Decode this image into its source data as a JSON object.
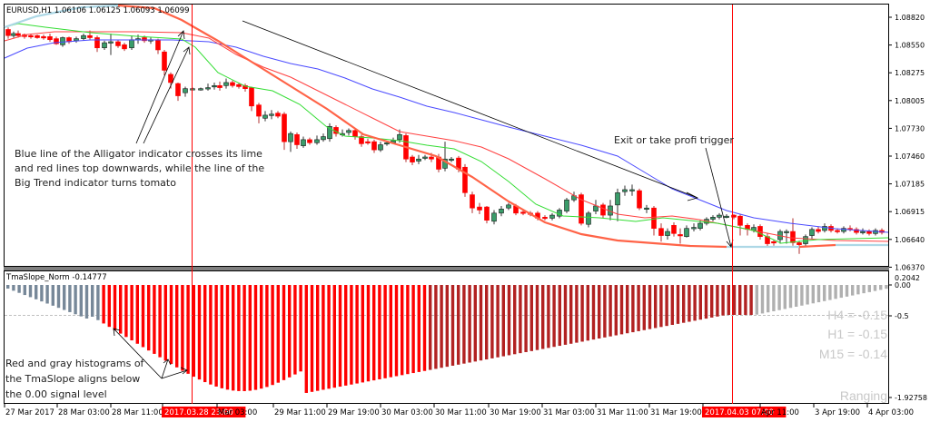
{
  "header": {
    "symbol_label": "EURUSD,H1  1.06106 1.06125 1.06093 1.06099"
  },
  "colors": {
    "bull": "#3a9c6a",
    "bear": "#ff0000",
    "alligator_jaw": "#4a4aff",
    "alligator_teeth": "#ff4040",
    "alligator_lips": "#33dd33",
    "big_trend_down": "#ff6347",
    "big_trend_up": "#add8e6",
    "hist_red": "#ff0000",
    "hist_darkred": "#b22222",
    "hist_gray": "#778899",
    "hist_lightgray": "#b0b0b0",
    "vline": "#ff0000",
    "trendline": "#000000"
  },
  "price_axis": {
    "ticks": [
      "1.08820",
      "1.08550",
      "1.08275",
      "1.08005",
      "1.07730",
      "1.07460",
      "1.07185",
      "1.06915",
      "1.06640",
      "1.06370"
    ]
  },
  "indicator": {
    "label": "TmaSlope_Norm -0.14777",
    "axis_ticks": [
      "0.2042",
      "0.00",
      "-0.5",
      "-1.92758"
    ],
    "tf_values": [
      "H4 = -0.15",
      "H1 = -0.15",
      "M15 = -0.14"
    ],
    "state": "Ranging"
  },
  "time_axis": {
    "labels": [
      "27 Mar 2017",
      "28 Mar 03:00",
      "28 Mar 11:00",
      "2017.03.28 23:00",
      "Mar 03:00",
      "29 Mar 11:00",
      "29 Mar 19:00",
      "30 Mar 03:00",
      "30 Mar 11:00",
      "30 Mar 19:00",
      "31 Mar 03:00",
      "31 Mar 11:00",
      "31 Mar 19:00",
      "2017.04.03 07:00",
      "Apr 11:00",
      "3 Apr 19:00",
      "4 Apr 03:00"
    ],
    "highlighted": [
      "2017.03.28 23:00",
      "2017.04.03 07:00"
    ]
  },
  "annotations": {
    "entry_note_1": "Blue line of the Alligator indicator crosses its lime",
    "entry_note_2": "and red lines top downwards, while the line of the",
    "entry_note_3": "Big Trend indicator turns tomato",
    "exit_note": "Exit or take profi trigger",
    "hist_note_1": "Red and gray histograms of",
    "hist_note_2": "the TmaSlope aligns below",
    "hist_note_3": "the 0.00 signal level"
  },
  "chart_data": {
    "type": "candlestick",
    "title": "EURUSD,H1",
    "ohlc_header": {
      "open": 1.06106,
      "high": 1.06125,
      "low": 1.06093,
      "close": 1.06099
    },
    "ylim": [
      1.0637,
      1.0895
    ],
    "y_ticks": [
      1.0882,
      1.0855,
      1.08275,
      1.08005,
      1.0773,
      1.0746,
      1.07185,
      1.06915,
      1.0664,
      1.0637
    ],
    "x_labels": [
      "27 Mar 2017",
      "28 Mar 03:00",
      "28 Mar 11:00",
      "2017.03.28 23:00",
      "29 Mar 03:00",
      "29 Mar 11:00",
      "29 Mar 19:00",
      "30 Mar 03:00",
      "30 Mar 11:00",
      "30 Mar 19:00",
      "31 Mar 03:00",
      "31 Mar 11:00",
      "31 Mar 19:00",
      "2017.04.03 07:00",
      "3 Apr 11:00",
      "3 Apr 19:00",
      "4 Apr 03:00"
    ],
    "vertical_markers": [
      "2017.03.28 23:00",
      "2017.04.03 07:00"
    ],
    "series": [
      {
        "name": "Alligator Jaw (blue)",
        "approx_path_y": [
          1.0842,
          1.085,
          1.0857,
          1.0858,
          1.0855,
          1.0835,
          1.0815,
          1.08,
          1.0785,
          1.076,
          1.0745,
          1.0725,
          1.07,
          1.069,
          1.0682,
          1.0675,
          1.0668
        ]
      },
      {
        "name": "Alligator Teeth (red)",
        "approx_path_y": [
          1.0856,
          1.0862,
          1.0862,
          1.086,
          1.084,
          1.081,
          1.078,
          1.077,
          1.075,
          1.0725,
          1.07,
          1.069,
          1.068,
          1.0677,
          1.067,
          1.0667,
          1.0664
        ]
      },
      {
        "name": "Alligator Lips (lime)",
        "approx_path_y": [
          1.0872,
          1.0866,
          1.0858,
          1.0855,
          1.083,
          1.08,
          1.0775,
          1.0765,
          1.074,
          1.0705,
          1.0688,
          1.0686,
          1.0682,
          1.0672,
          1.066,
          1.0662,
          1.0664
        ]
      },
      {
        "name": "Big Trend",
        "approx_path_y": [
          1.0878,
          1.089,
          1.0885,
          1.0862,
          1.083,
          1.079,
          1.076,
          1.0745,
          1.0725,
          1.0695,
          1.0678,
          1.0668,
          1.066,
          1.0656,
          1.0656,
          1.0658,
          1.0659
        ]
      }
    ],
    "indicator_panel": {
      "name": "TmaSlope_Norm",
      "current_value": -0.14777,
      "ylim": [
        -1.92758,
        0.2042
      ],
      "signal_level": -0.5,
      "zero_level": 0.0,
      "min_value_approx": -1.75,
      "timeframe_readout": {
        "H4": -0.15,
        "H1": -0.15,
        "M15": -0.14
      },
      "state": "Ranging"
    }
  }
}
